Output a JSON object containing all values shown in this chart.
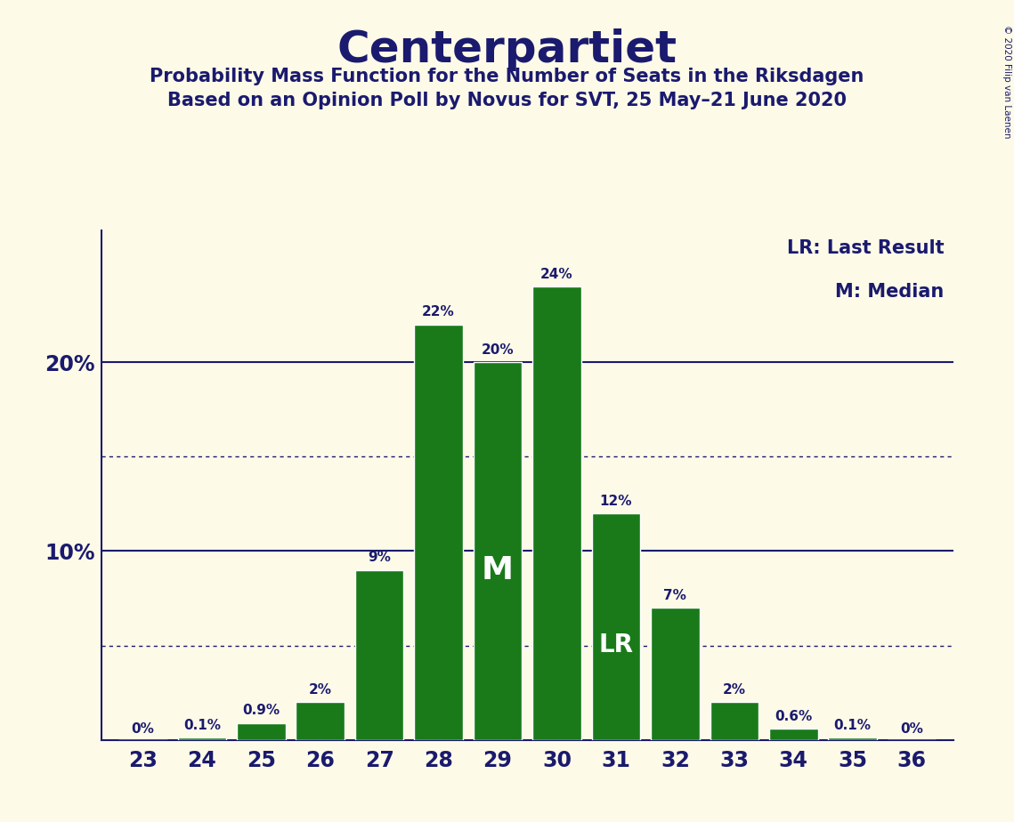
{
  "title": "Centerpartiet",
  "subtitle1": "Probability Mass Function for the Number of Seats in the Riksdagen",
  "subtitle2": "Based on an Opinion Poll by Novus for SVT, 25 May–21 June 2020",
  "copyright": "© 2020 Filip van Laenen",
  "seats": [
    23,
    24,
    25,
    26,
    27,
    28,
    29,
    30,
    31,
    32,
    33,
    34,
    35,
    36
  ],
  "probabilities": [
    0.0,
    0.1,
    0.9,
    2.0,
    9.0,
    22.0,
    20.0,
    24.0,
    12.0,
    7.0,
    2.0,
    0.6,
    0.1,
    0.0
  ],
  "bar_labels": [
    "0%",
    "0.1%",
    "0.9%",
    "2%",
    "9%",
    "22%",
    "20%",
    "24%",
    "12%",
    "7%",
    "2%",
    "0.6%",
    "0.1%",
    "0%"
  ],
  "bar_color": "#1a7a1a",
  "background_color": "#fdfae8",
  "text_color": "#1a1a6e",
  "median_seat": 29,
  "last_result_seat": 31,
  "legend_lr": "LR: Last Result",
  "legend_m": "M: Median",
  "dotted_lines": [
    5.0,
    15.0
  ],
  "solid_lines": [
    10.0,
    20.0
  ],
  "ylim": [
    0,
    27
  ],
  "bar_width": 0.82
}
